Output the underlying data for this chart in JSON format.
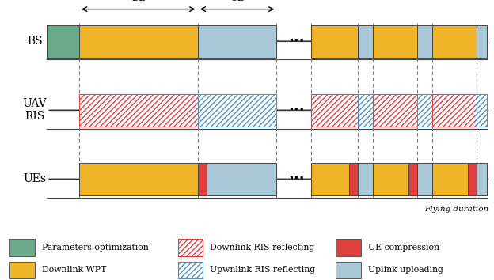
{
  "fig_width": 6.24,
  "fig_height": 3.54,
  "dpi": 100,
  "bg_color": "#ffffff",
  "colors": {
    "green": "#6aaa8a",
    "yellow": "#f0b429",
    "light_blue": "#a8c8d8",
    "red": "#e04040",
    "hatch_red": "#e04040",
    "hatch_blue": "#5090c0"
  },
  "row_labels": [
    "BS",
    "UAV\nRIS",
    "UEs"
  ],
  "note_fontsize": 8.5,
  "label_fontsize": 10,
  "legend_fontsize": 7.8
}
